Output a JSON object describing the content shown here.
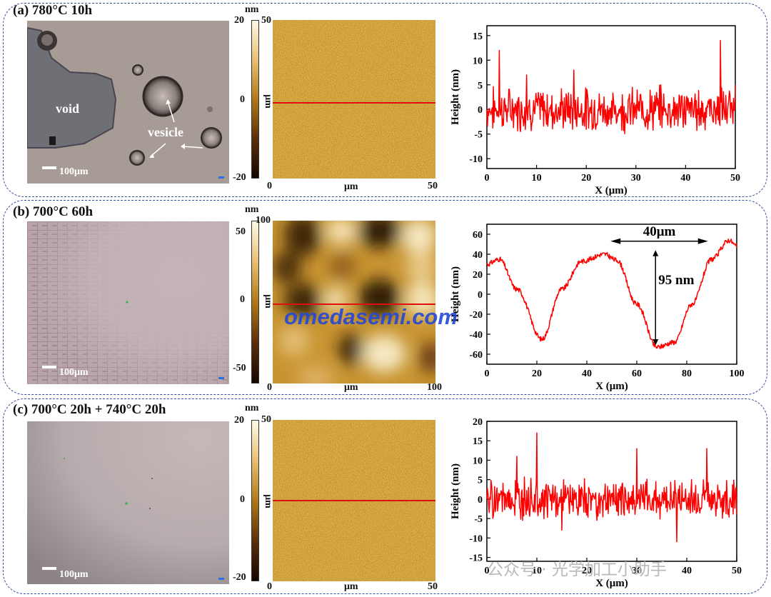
{
  "panels": [
    {
      "title": "(a) 780°C 10h",
      "micrograph": {
        "scale_label": "100μm",
        "labels": {
          "void": "void",
          "vesicle": "vesicle"
        }
      },
      "colorbar": {
        "unit": "nm",
        "max": "20",
        "zero": "0",
        "min": "-20"
      },
      "afm": {
        "axis_unit": "μm",
        "y_unit": "μm",
        "zero": "0",
        "max": "50"
      },
      "profile": {
        "type": "line",
        "xlabel": "X (μm)",
        "ylabel": "Height (nm)",
        "xlim": [
          0,
          50
        ],
        "ylim": [
          -12,
          17
        ],
        "xticks": [
          0,
          10,
          20,
          30,
          40,
          50
        ],
        "yticks": [
          -10,
          -5,
          0,
          5,
          10,
          15
        ],
        "seed": 7,
        "amp": 3.2
      }
    },
    {
      "title": "(b) 700°C 60h",
      "micrograph": {
        "scale_label": "100μm"
      },
      "colorbar": {
        "unit": "nm",
        "max": "50",
        "zero": "0",
        "min": "-50"
      },
      "afm": {
        "axis_unit": "μm",
        "y_unit": "μm",
        "zero": "0",
        "max": "100"
      },
      "profile": {
        "type": "line",
        "xlabel": "X (μm)",
        "ylabel": "Height (nm)",
        "xlim": [
          0,
          100
        ],
        "ylim": [
          -70,
          70
        ],
        "xticks": [
          0,
          20,
          40,
          60,
          80,
          100
        ],
        "yticks": [
          -60,
          -40,
          -20,
          0,
          20,
          40,
          60
        ],
        "annotations": {
          "width": "40μm",
          "depth": "95 nm"
        }
      }
    },
    {
      "title": "(c) 700°C 20h + 740°C 20h",
      "micrograph": {
        "scale_label": "100μm"
      },
      "colorbar": {
        "unit": "nm",
        "max": "20",
        "zero": "0",
        "min": "-20"
      },
      "afm": {
        "axis_unit": "μm",
        "y_unit": "μm",
        "zero": "0",
        "max": "50"
      },
      "profile": {
        "type": "line",
        "xlabel": "X (μm)",
        "ylabel": "Height (nm)",
        "xlim": [
          0,
          50
        ],
        "ylim": [
          -16,
          20
        ],
        "xticks": [
          0,
          10,
          20,
          30,
          40,
          50
        ],
        "yticks": [
          -15,
          -10,
          -5,
          0,
          5,
          10,
          15,
          20
        ],
        "seed": 19,
        "amp": 3.8
      }
    }
  ],
  "chart_data": [
    {
      "type": "line",
      "title": "(a) 780°C 10h",
      "xlabel": "X (μm)",
      "ylabel": "Height (nm)",
      "xlim": [
        0,
        50
      ],
      "ylim": [
        -12,
        17
      ],
      "x": [
        0,
        2.5,
        8,
        17.5,
        25,
        35,
        45,
        47,
        50
      ],
      "y": [
        0,
        12,
        7,
        8,
        -3,
        5,
        2,
        14,
        5
      ]
    },
    {
      "type": "line",
      "title": "(b) 700°C 60h",
      "xlabel": "X (μm)",
      "ylabel": "Height (nm)",
      "xlim": [
        0,
        100
      ],
      "ylim": [
        -70,
        70
      ],
      "x": [
        0,
        5,
        12,
        22,
        30,
        38,
        47,
        52,
        60,
        68,
        75,
        82,
        90,
        97,
        100
      ],
      "y": [
        30,
        35,
        5,
        -45,
        5,
        33,
        40,
        34,
        -10,
        -53,
        -48,
        -10,
        35,
        54,
        48
      ]
    },
    {
      "type": "line",
      "title": "(c) 700°C 20h + 740°C 20h",
      "xlabel": "X (μm)",
      "ylabel": "Height (nm)",
      "xlim": [
        0,
        50
      ],
      "ylim": [
        -16,
        20
      ],
      "x": [
        0,
        6,
        10,
        15,
        30,
        38,
        44,
        50
      ],
      "y": [
        0,
        11,
        17,
        -8,
        13,
        -11,
        13,
        -4
      ]
    }
  ],
  "watermark": "omedasemi.com",
  "wechat": "公众号 · 光学加工小助手",
  "colors": {
    "profile": "#ff0000",
    "panel_border": "#3a4f9a",
    "scan_line": "#e01010"
  }
}
